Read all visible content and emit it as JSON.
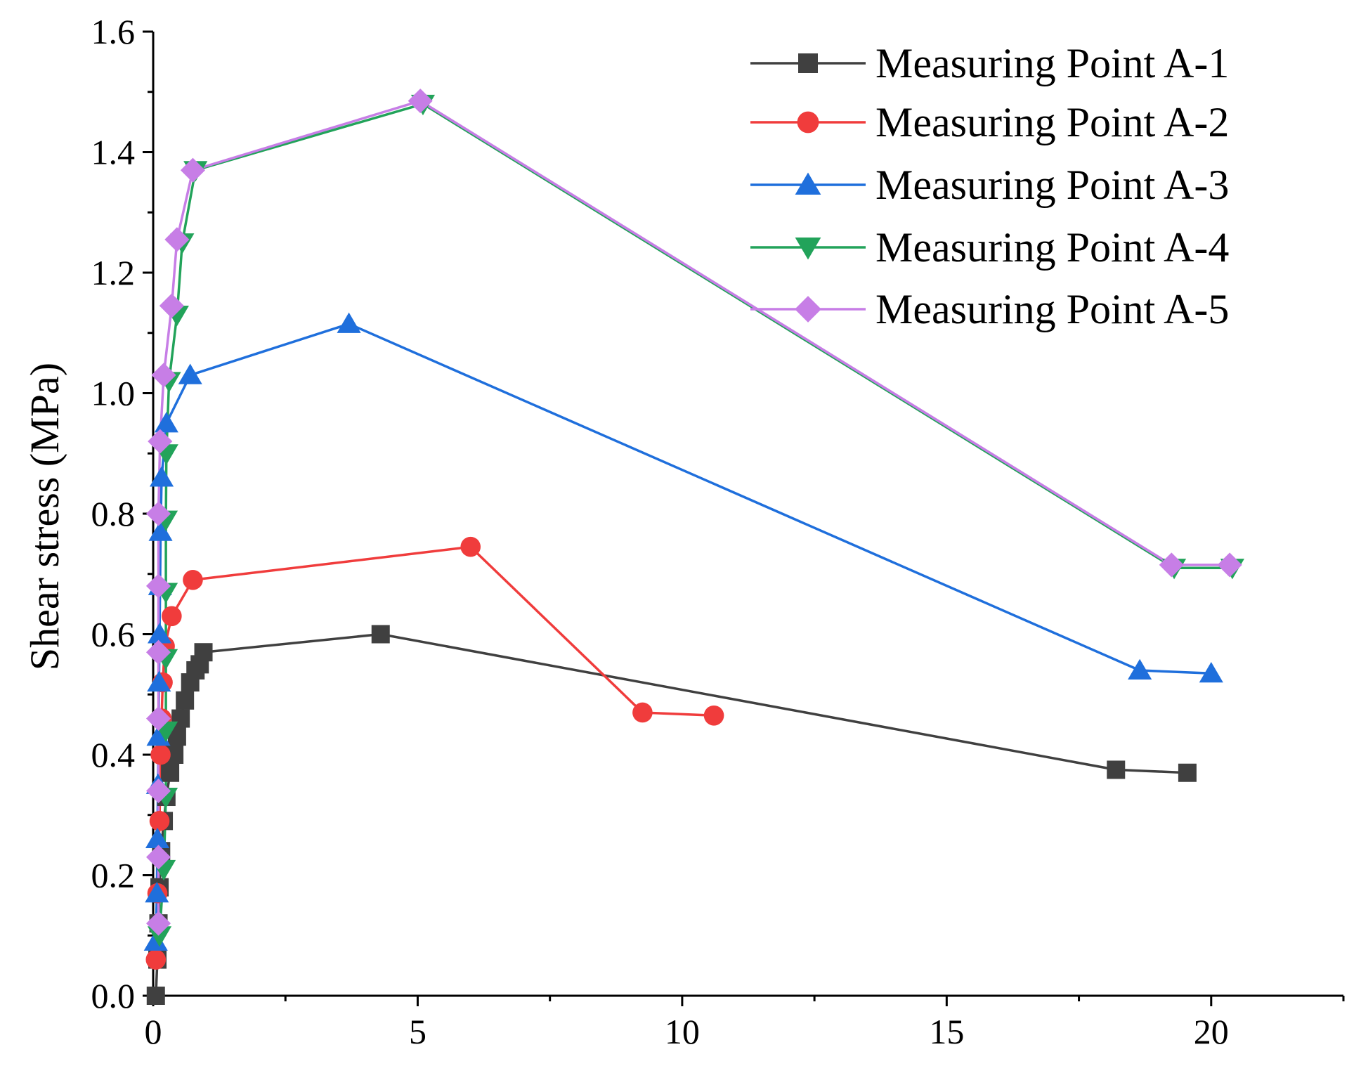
{
  "chart_data": {
    "type": "line",
    "title": "",
    "xlabel": "",
    "ylabel": "Shear stress (MPa)",
    "xlim": [
      0,
      22.5
    ],
    "ylim": [
      0,
      1.6
    ],
    "x_ticks": [
      0,
      5,
      10,
      15,
      20
    ],
    "x_minor_step": 2.5,
    "y_ticks": [
      0.0,
      0.2,
      0.4,
      0.6,
      0.8,
      1.0,
      1.2,
      1.4,
      1.6
    ],
    "x_tick_labels": [
      "0",
      "5",
      "10",
      "15",
      "20"
    ],
    "y_tick_labels": [
      "0.0",
      "0.2",
      "0.4",
      "0.6",
      "0.8",
      "1.0",
      "1.2",
      "1.4",
      "1.6"
    ],
    "grid": false,
    "legend_position": "top-right",
    "series": [
      {
        "name": "Measuring Point A-1",
        "color": "#404040",
        "marker": "square",
        "points": [
          [
            0.05,
            0.0
          ],
          [
            0.08,
            0.06
          ],
          [
            0.1,
            0.12
          ],
          [
            0.12,
            0.18
          ],
          [
            0.15,
            0.24
          ],
          [
            0.2,
            0.29
          ],
          [
            0.25,
            0.33
          ],
          [
            0.32,
            0.37
          ],
          [
            0.4,
            0.4
          ],
          [
            0.45,
            0.43
          ],
          [
            0.52,
            0.46
          ],
          [
            0.6,
            0.49
          ],
          [
            0.7,
            0.52
          ],
          [
            0.8,
            0.54
          ],
          [
            0.88,
            0.55
          ],
          [
            0.95,
            0.57
          ],
          [
            4.3,
            0.6
          ],
          [
            18.2,
            0.375
          ],
          [
            19.55,
            0.37
          ]
        ]
      },
      {
        "name": "Measuring Point A-2",
        "color": "#f03c3c",
        "marker": "circle",
        "points": [
          [
            0.05,
            0.06
          ],
          [
            0.08,
            0.17
          ],
          [
            0.12,
            0.29
          ],
          [
            0.14,
            0.4
          ],
          [
            0.16,
            0.46
          ],
          [
            0.18,
            0.52
          ],
          [
            0.22,
            0.58
          ],
          [
            0.35,
            0.63
          ],
          [
            0.75,
            0.69
          ],
          [
            6.0,
            0.745
          ],
          [
            9.25,
            0.47
          ],
          [
            10.6,
            0.465
          ]
        ]
      },
      {
        "name": "Measuring Point A-3",
        "color": "#1f6fdc",
        "marker": "triangle-up",
        "points": [
          [
            0.05,
            0.09
          ],
          [
            0.07,
            0.17
          ],
          [
            0.08,
            0.26
          ],
          [
            0.09,
            0.35
          ],
          [
            0.1,
            0.43
          ],
          [
            0.11,
            0.52
          ],
          [
            0.12,
            0.6
          ],
          [
            0.13,
            0.68
          ],
          [
            0.14,
            0.77
          ],
          [
            0.16,
            0.86
          ],
          [
            0.25,
            0.95
          ],
          [
            0.7,
            1.03
          ],
          [
            3.7,
            1.115
          ],
          [
            18.65,
            0.54
          ],
          [
            20.0,
            0.535
          ]
        ]
      },
      {
        "name": "Measuring Point A-4",
        "color": "#22a35a",
        "marker": "triangle-down",
        "points": [
          [
            0.12,
            0.1
          ],
          [
            0.2,
            0.21
          ],
          [
            0.24,
            0.33
          ],
          [
            0.24,
            0.44
          ],
          [
            0.24,
            0.56
          ],
          [
            0.24,
            0.67
          ],
          [
            0.24,
            0.79
          ],
          [
            0.25,
            0.9
          ],
          [
            0.3,
            1.02
          ],
          [
            0.45,
            1.13
          ],
          [
            0.55,
            1.25
          ],
          [
            0.8,
            1.37
          ],
          [
            5.1,
            1.48
          ],
          [
            19.3,
            0.71
          ],
          [
            20.4,
            0.71
          ]
        ]
      },
      {
        "name": "Measuring Point A-5",
        "color": "#c77ee6",
        "marker": "diamond",
        "points": [
          [
            0.1,
            0.12
          ],
          [
            0.1,
            0.23
          ],
          [
            0.1,
            0.34
          ],
          [
            0.1,
            0.46
          ],
          [
            0.1,
            0.57
          ],
          [
            0.1,
            0.68
          ],
          [
            0.1,
            0.8
          ],
          [
            0.13,
            0.92
          ],
          [
            0.2,
            1.03
          ],
          [
            0.35,
            1.145
          ],
          [
            0.45,
            1.255
          ],
          [
            0.75,
            1.37
          ],
          [
            5.05,
            1.485
          ],
          [
            19.25,
            0.715
          ],
          [
            20.35,
            0.715
          ]
        ]
      }
    ]
  }
}
